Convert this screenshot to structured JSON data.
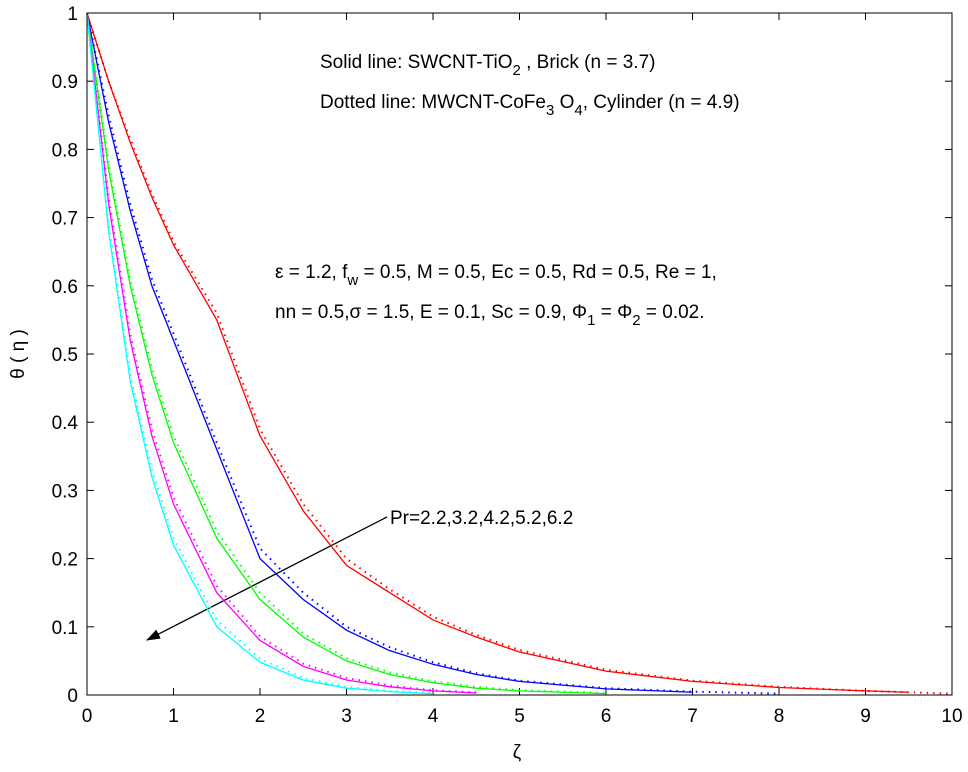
{
  "chart_data": {
    "type": "line",
    "xlabel": "ζ",
    "ylabel": "θ ( η )",
    "x": [
      0,
      0.25,
      0.5,
      0.75,
      1,
      1.5,
      2,
      2.5,
      3,
      3.5,
      4,
      4.5,
      5,
      6,
      7,
      8,
      9,
      9.5,
      10
    ],
    "series": [
      {
        "color": "#ff0000",
        "linestyle": "solid",
        "values": [
          1,
          0.9,
          0.81,
          0.73,
          0.66,
          0.55,
          0.38,
          0.27,
          0.19,
          0.15,
          0.11,
          0.085,
          0.063,
          0.035,
          0.02,
          0.011,
          0.006,
          0.004,
          null
        ]
      },
      {
        "color": "#ff0000",
        "linestyle": "dotted",
        "values": [
          1,
          0.9,
          0.815,
          0.735,
          0.665,
          0.56,
          0.39,
          0.28,
          0.2,
          0.155,
          0.115,
          0.088,
          0.066,
          0.037,
          0.021,
          0.012,
          0.006,
          0.004,
          0.002
        ]
      },
      {
        "color": "#0000ff",
        "linestyle": "solid",
        "values": [
          1,
          0.84,
          0.71,
          0.6,
          0.52,
          0.36,
          0.2,
          0.14,
          0.095,
          0.065,
          0.045,
          0.03,
          0.02,
          0.009,
          0.004,
          null,
          null,
          null,
          null
        ]
      },
      {
        "color": "#0000ff",
        "linestyle": "dotted",
        "values": [
          1,
          0.85,
          0.72,
          0.61,
          0.53,
          0.37,
          0.215,
          0.15,
          0.1,
          0.07,
          0.048,
          0.032,
          0.021,
          0.01,
          0.005,
          0.002,
          null,
          null,
          null
        ]
      },
      {
        "color": "#00ff00",
        "linestyle": "solid",
        "values": [
          1,
          0.77,
          0.6,
          0.47,
          0.37,
          0.23,
          0.14,
          0.085,
          0.05,
          0.03,
          0.018,
          0.01,
          0.006,
          0.002,
          null,
          null,
          null,
          null,
          null
        ]
      },
      {
        "color": "#00ff00",
        "linestyle": "dotted",
        "values": [
          1,
          0.78,
          0.61,
          0.48,
          0.38,
          0.24,
          0.15,
          0.09,
          0.054,
          0.033,
          0.02,
          0.012,
          0.007,
          0.003,
          null,
          null,
          null,
          null,
          null
        ]
      },
      {
        "color": "#ff00ff",
        "linestyle": "solid",
        "values": [
          1,
          0.72,
          0.52,
          0.38,
          0.28,
          0.15,
          0.08,
          0.042,
          0.022,
          0.012,
          0.006,
          0.003,
          null,
          null,
          null,
          null,
          null,
          null,
          null
        ]
      },
      {
        "color": "#ff00ff",
        "linestyle": "dotted",
        "values": [
          1,
          0.73,
          0.53,
          0.39,
          0.29,
          0.16,
          0.086,
          0.046,
          0.025,
          0.014,
          0.007,
          0.004,
          null,
          null,
          null,
          null,
          null,
          null,
          null
        ]
      },
      {
        "color": "#00ffff",
        "linestyle": "solid",
        "values": [
          1,
          0.68,
          0.46,
          0.32,
          0.22,
          0.1,
          0.048,
          0.022,
          0.01,
          0.005,
          0.002,
          null,
          null,
          null,
          null,
          null,
          null,
          null,
          null
        ]
      },
      {
        "color": "#00ffff",
        "linestyle": "dotted",
        "values": [
          1,
          0.69,
          0.47,
          0.33,
          0.23,
          0.11,
          0.053,
          0.025,
          0.012,
          0.006,
          0.003,
          null,
          null,
          null,
          null,
          null,
          null,
          null,
          null
        ]
      }
    ],
    "xlim": [
      0,
      10
    ],
    "xticks": [
      0,
      1,
      2,
      3,
      4,
      5,
      6,
      7,
      8,
      9,
      10
    ],
    "ylim": [
      0,
      1
    ],
    "yticks": [
      0,
      0.1,
      0.2,
      0.3,
      0.4,
      0.5,
      0.6,
      0.7,
      0.8,
      0.9,
      1
    ],
    "grid": false,
    "annotations": [
      [
        "Solid line:   SWCNT-TiO",
        "2",
        " ,            Brick (n = 3.7)"
      ],
      [
        "Dotted line: MWCNT-CoFe",
        "3",
        " O",
        "4",
        ", Cylinder (n = 4.9)"
      ],
      [
        "ε = 1.2, f",
        "w",
        " = 0.5, M = 0.5, Ec = 0.5, Rd = 0.5, Re = 1,"
      ],
      [
        "nn = 0.5,σ = 1.5, E = 0.1, Sc = 0.9, Φ",
        "1",
        " = Φ",
        "2",
        " =  0.02."
      ]
    ],
    "arrow_label": "Pr=2.2,3.2,4.2,5.2,6.2"
  }
}
